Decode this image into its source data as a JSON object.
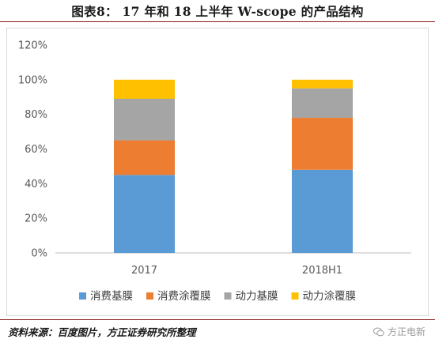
{
  "title": "图表8： 17 年和 18 上半年 W-scope 的产品结构",
  "source": "资料来源：百度图片，方正证券研究所整理",
  "watermark": "方正电新",
  "chart_data": {
    "type": "bar",
    "stacked": true,
    "categories": [
      "2017",
      "2018H1"
    ],
    "series": [
      {
        "name": "消费基膜",
        "color": "#5b9bd5",
        "values": [
          45,
          48
        ]
      },
      {
        "name": "消费涂覆膜",
        "color": "#ed7d31",
        "values": [
          20,
          30
        ]
      },
      {
        "name": "动力基膜",
        "color": "#a5a5a5",
        "values": [
          24,
          17
        ]
      },
      {
        "name": "动力涂覆膜",
        "color": "#ffc000",
        "values": [
          11,
          5
        ]
      }
    ],
    "ylim": [
      0,
      120
    ],
    "yticks": [
      "0%",
      "20%",
      "40%",
      "60%",
      "80%",
      "100%",
      "120%"
    ],
    "legend_position": "bottom",
    "grid": false
  }
}
